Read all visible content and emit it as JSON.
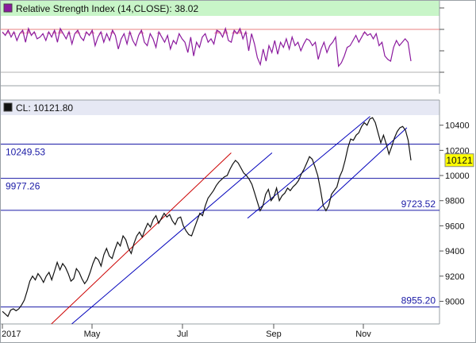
{
  "rsi_panel": {
    "label": "Relative Strength Index (14,CLOSE): 38.02",
    "line_color": "#8b1a9e",
    "overbought_fill": "#f4a0b8",
    "header_bg": "#c8f5c8"
  },
  "price_panel": {
    "label": "CL: 10121.80",
    "last_value": "10121",
    "last_value_bg": "#ffff00",
    "header_bg": "#e6e8f4"
  },
  "chart_data": [
    {
      "type": "line",
      "title": "Relative Strength Index (14,CLOSE): 38.02",
      "xlabel": "",
      "ylabel": "",
      "ylim": [
        0,
        100
      ],
      "reference_lines": [
        30,
        70
      ],
      "grid": false,
      "series": [
        {
          "values": [
            72,
            68,
            74,
            66,
            72,
            62,
            70,
            74,
            60,
            76,
            68,
            72,
            64,
            66,
            70,
            62,
            72,
            66,
            74,
            60,
            76,
            70,
            64,
            72,
            58,
            70,
            74,
            66,
            62,
            72,
            68,
            74,
            56,
            66,
            72,
            60,
            70,
            62,
            74,
            68,
            52,
            64,
            70,
            58,
            72,
            62,
            56,
            68,
            74,
            60,
            56,
            70,
            64,
            54,
            72,
            66,
            60,
            68,
            52,
            62,
            58,
            70,
            64,
            60,
            48,
            66,
            44,
            60,
            54,
            66,
            70,
            60,
            64,
            58,
            74,
            72,
            66,
            76,
            62,
            60,
            74,
            70,
            76,
            64,
            72,
            50,
            70,
            58,
            42,
            34,
            52,
            38,
            56,
            48,
            62,
            46,
            60,
            54,
            64,
            52,
            66,
            56,
            60,
            50,
            58,
            64,
            62,
            56,
            60,
            40,
            52,
            60,
            48,
            56,
            60,
            66,
            32,
            36,
            44,
            54,
            56,
            62,
            68,
            60,
            66,
            72,
            68,
            70,
            64,
            70,
            56,
            60,
            44,
            40,
            38,
            54,
            62,
            56,
            60,
            64,
            60,
            38
          ]
        }
      ]
    },
    {
      "type": "line",
      "title": "CL: 10121.80",
      "xlabel": "",
      "ylabel": "",
      "x_tick_labels": [
        "2017",
        "May",
        "Jul",
        "Sep",
        "Nov"
      ],
      "y_tick_labels": [
        "9000",
        "9200",
        "9400",
        "9600",
        "9800",
        "10000",
        "10200",
        "10400"
      ],
      "ylim": [
        8820,
        10480
      ],
      "grid": false,
      "horizontal_levels": [
        {
          "value": 10249.53,
          "label": "10249.53"
        },
        {
          "value": 9977.26,
          "label": "9977.26"
        },
        {
          "value": 9723.52,
          "label": "9723.52"
        },
        {
          "value": 8955.2,
          "label": "8955.20"
        }
      ],
      "last_value": 10121.8,
      "series": [
        {
          "name": "CL",
          "values": [
            8920,
            8900,
            8880,
            8930,
            8940,
            8925,
            8940,
            8970,
            9010,
            9080,
            9160,
            9200,
            9170,
            9220,
            9190,
            9150,
            9200,
            9230,
            9170,
            9240,
            9310,
            9250,
            9300,
            9270,
            9220,
            9160,
            9180,
            9260,
            9230,
            9180,
            9140,
            9170,
            9230,
            9300,
            9350,
            9330,
            9280,
            9370,
            9420,
            9360,
            9340,
            9410,
            9470,
            9440,
            9520,
            9490,
            9420,
            9380,
            9460,
            9520,
            9550,
            9510,
            9570,
            9620,
            9590,
            9650,
            9680,
            9620,
            9660,
            9700,
            9670,
            9690,
            9640,
            9610,
            9660,
            9670,
            9600,
            9560,
            9530,
            9520,
            9580,
            9640,
            9700,
            9680,
            9760,
            9820,
            9850,
            9880,
            9920,
            9950,
            9970,
            9990,
            10000,
            10050,
            10090,
            10120,
            10100,
            10060,
            10020,
            10000,
            9970,
            9930,
            9860,
            9790,
            9720,
            9760,
            9850,
            9890,
            9800,
            9830,
            9900,
            9800,
            9840,
            9860,
            9900,
            9880,
            9910,
            9930,
            9960,
            10010,
            10050,
            10100,
            10150,
            10130,
            10070,
            10000,
            9890,
            9760,
            9720,
            9760,
            9850,
            9880,
            9910,
            9990,
            10040,
            10120,
            10220,
            10290,
            10280,
            10320,
            10340,
            10390,
            10420,
            10400,
            10450,
            10460,
            10420,
            10340,
            10260,
            10320,
            10250,
            10170,
            10230,
            10300,
            10350,
            10380,
            10390,
            10360,
            10280,
            10121
          ]
        }
      ],
      "trendlines": [
        {
          "color": "#cc0000",
          "points": [
            [
              8820,
              0
            ],
            [
              10180,
              0
            ]
          ]
        },
        {
          "color": "#0000bb",
          "points": [
            [
              8820,
              0
            ],
            [
              10180,
              0
            ]
          ]
        },
        {
          "color": "#0000bb",
          "points": [
            [
              9660,
              0
            ],
            [
              10470,
              0
            ]
          ]
        },
        {
          "color": "#0000bb",
          "points": [
            [
              9720,
              0
            ],
            [
              10380,
              0
            ]
          ]
        }
      ]
    }
  ]
}
